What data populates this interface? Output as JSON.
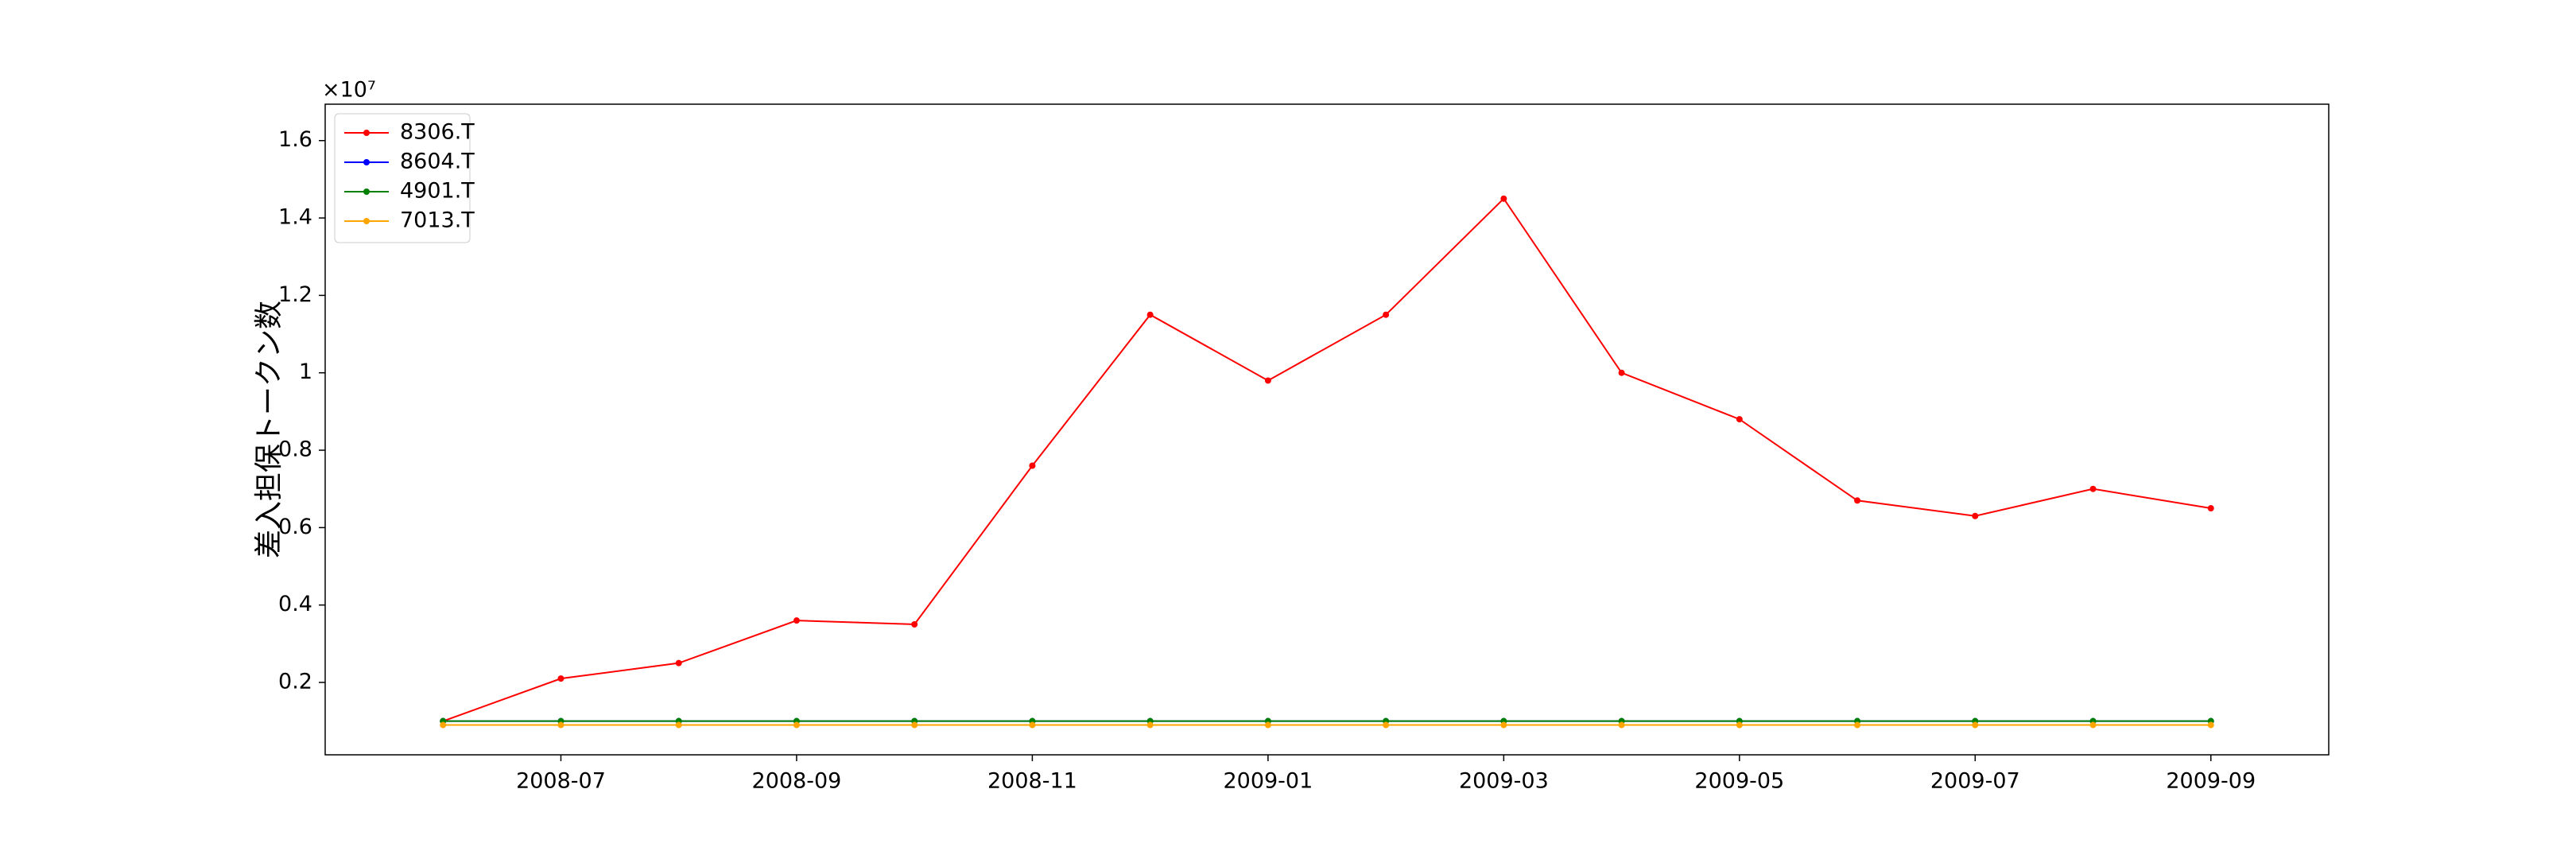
{
  "chart_data": {
    "type": "line",
    "y_label": "差入担保トークン数",
    "y_offset_label": "×10⁷",
    "x": [
      "2008-06",
      "2008-07",
      "2008-08",
      "2008-09",
      "2008-10",
      "2008-11",
      "2008-12",
      "2009-01",
      "2009-02",
      "2009-03",
      "2009-04",
      "2009-05",
      "2009-06",
      "2009-07",
      "2009-08",
      "2009-09"
    ],
    "series": [
      {
        "name": "8306.T",
        "color": "#ff0000",
        "values": [
          0.1,
          0.21,
          0.25,
          0.36,
          0.35,
          0.76,
          1.15,
          0.98,
          1.15,
          1.45,
          1.0,
          0.88,
          0.67,
          0.63,
          0.7,
          0.65
        ]
      },
      {
        "name": "8604.T",
        "color": "#0000ff",
        "values": [
          0.1,
          0.1,
          0.1,
          0.1,
          0.1,
          0.1,
          0.1,
          0.1,
          0.1,
          0.1,
          0.1,
          0.1,
          0.1,
          0.1,
          0.1,
          0.1
        ]
      },
      {
        "name": "4901.T",
        "color": "#008000",
        "values": [
          0.1,
          0.1,
          0.1,
          0.1,
          0.1,
          0.1,
          0.1,
          0.1,
          0.1,
          0.1,
          0.1,
          0.1,
          0.1,
          0.1,
          0.1,
          0.1
        ]
      },
      {
        "name": "7013.T",
        "color": "#ffa500",
        "values": [
          0.09,
          0.09,
          0.09,
          0.09,
          0.09,
          0.09,
          0.09,
          0.09,
          0.09,
          0.09,
          0.09,
          0.09,
          0.09,
          0.09,
          0.09,
          0.09
        ]
      }
    ],
    "xlim": [
      "2008-05",
      "2009-10"
    ],
    "xticks": [
      "2008-07",
      "2008-09",
      "2008-11",
      "2009-01",
      "2009-03",
      "2009-05",
      "2009-07",
      "2009-09"
    ],
    "ylim": [
      0.013,
      1.694
    ],
    "yticks": [
      0.2,
      0.4,
      0.6,
      0.8,
      1.0,
      1.2,
      1.4,
      1.6
    ],
    "legend": "upper left",
    "grid": false
  }
}
